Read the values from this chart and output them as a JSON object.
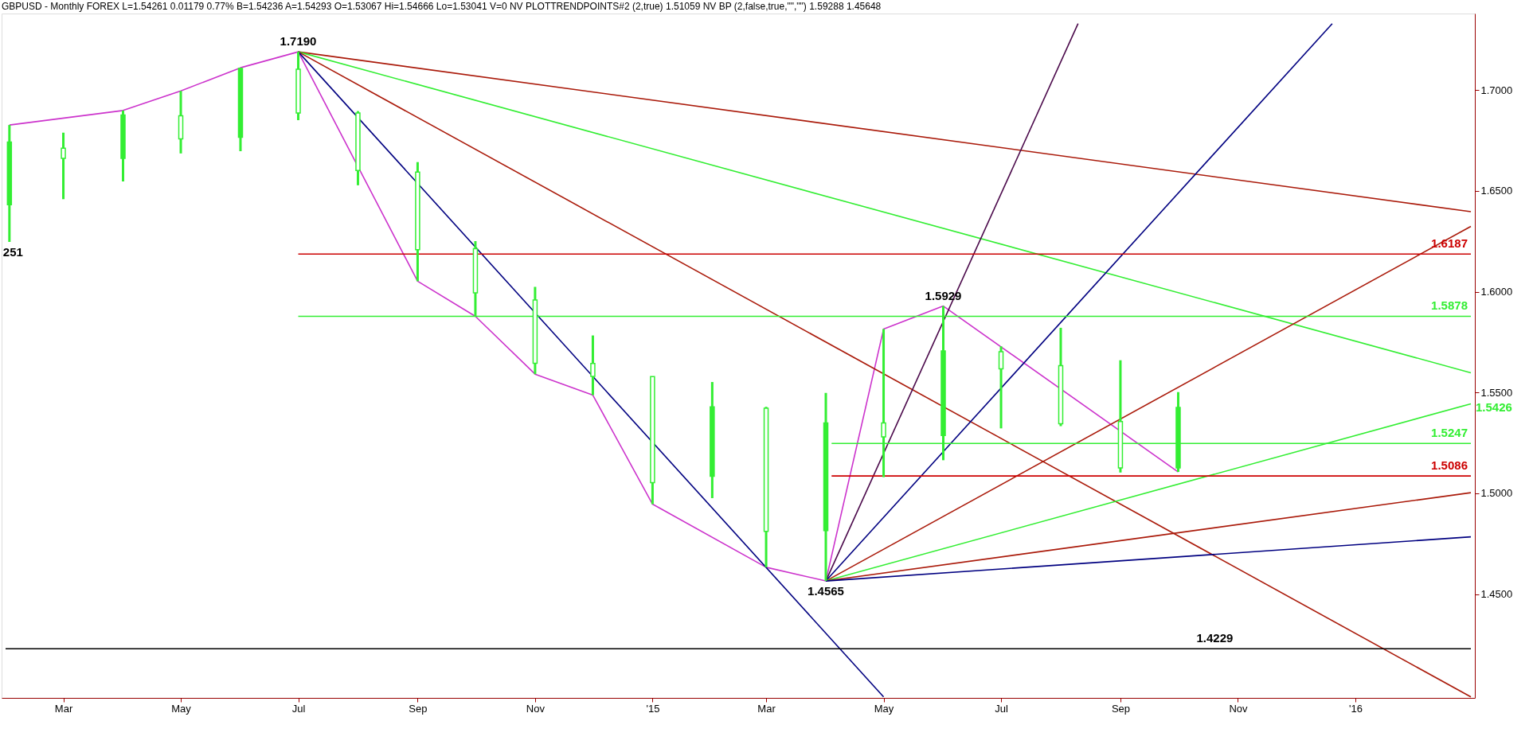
{
  "chart_data": {
    "type": "candlestick",
    "title": "GBPUSD - Monthly  FOREX  L=1.54261  0.01179  0.77%  B=1.54236  A=1.54293  O=1.53067  Hi=1.54666  Lo=1.53041  V=0  NV  PLOTTRENDPOINTS#2 (2,true)  1.51059  NV BP (2,false,true,\"\",\"\")  1.59288  1.45648",
    "color": "#33ee33",
    "x": [
      "2014-02",
      "2014-03",
      "2014-04",
      "2014-05",
      "2014-06",
      "2014-07",
      "2014-08",
      "2014-09",
      "2014-10",
      "2014-11",
      "2014-12",
      "2015-01",
      "2015-02",
      "2015-03",
      "2015-04",
      "2015-05",
      "2015-06",
      "2015-07",
      "2015-08",
      "2015-09",
      "2015-10"
    ],
    "ohlc": [
      [
        1.6432,
        1.6827,
        1.6247,
        1.6742
      ],
      [
        1.6712,
        1.6789,
        1.6459,
        1.6662
      ],
      [
        1.6662,
        1.6899,
        1.6547,
        1.6877
      ],
      [
        1.6873,
        1.6996,
        1.6686,
        1.6758
      ],
      [
        1.6766,
        1.7111,
        1.6697,
        1.7108
      ],
      [
        1.7104,
        1.719,
        1.6851,
        1.6887
      ],
      [
        1.6887,
        1.6896,
        1.6528,
        1.6601
      ],
      [
        1.6593,
        1.6643,
        1.6052,
        1.6209
      ],
      [
        1.6213,
        1.6251,
        1.5878,
        1.5994
      ],
      [
        1.5959,
        1.6024,
        1.5591,
        1.5645
      ],
      [
        1.5644,
        1.5783,
        1.5487,
        1.558
      ],
      [
        1.5579,
        1.5579,
        1.4946,
        1.5053
      ],
      [
        1.5084,
        1.5552,
        1.4976,
        1.5429
      ],
      [
        1.5422,
        1.5429,
        1.4633,
        1.4811
      ],
      [
        1.4815,
        1.5498,
        1.4565,
        1.5349
      ],
      [
        1.5349,
        1.5815,
        1.508,
        1.528
      ],
      [
        1.5287,
        1.5929,
        1.5164,
        1.5706
      ],
      [
        1.5702,
        1.5729,
        1.5322,
        1.5617
      ],
      [
        1.5633,
        1.5821,
        1.5333,
        1.5345
      ],
      [
        1.5356,
        1.566,
        1.5103,
        1.5126
      ],
      [
        1.5126,
        1.5502,
        1.5106,
        1.5426
      ]
    ],
    "series": [
      {
        "type": "line",
        "color": "#cc33cc",
        "x": [
          "2014-02",
          "2014-04",
          "2014-05",
          "2014-06",
          "2014-07",
          "2014-09",
          "2014-10",
          "2014-11",
          "2014-12",
          "2015-01",
          "2015-03",
          "2015-04",
          "2015-05",
          "2015-06",
          "2015-10"
        ],
        "values": [
          1.6827,
          1.6899,
          1.6996,
          1.7111,
          1.719,
          1.6052,
          1.5878,
          1.5591,
          1.5487,
          1.4946,
          1.4633,
          1.4565,
          1.5815,
          1.5929,
          1.5106
        ]
      },
      {
        "type": "line",
        "color": "#aa1a0a",
        "x": [
          "2014-07",
          "2016-03-01"
        ],
        "values": [
          1.719,
          1.6397
        ]
      },
      {
        "type": "line",
        "color": "#33ee33",
        "x": [
          "2014-07",
          "2016-03-01"
        ],
        "values": [
          1.719,
          1.5598
        ]
      },
      {
        "type": "line",
        "color": "#aa1a0a",
        "x": [
          "2014-07",
          "2016-03-01"
        ],
        "values": [
          1.719,
          1.399
        ]
      },
      {
        "type": "line",
        "color": "#000080",
        "x": [
          "2014-07",
          "2015-05"
        ],
        "values": [
          1.719,
          1.399
        ]
      },
      {
        "type": "line",
        "color": "#4b0a4b",
        "x": [
          "2015-04",
          "2015-08-10"
        ],
        "values": [
          1.4565,
          1.733
        ]
      },
      {
        "type": "line",
        "color": "#000080",
        "x": [
          "2015-04",
          "2015-12-20"
        ],
        "values": [
          1.4565,
          1.733
        ]
      },
      {
        "type": "line",
        "color": "#aa1a0a",
        "x": [
          "2015-04",
          "2016-03-01"
        ],
        "values": [
          1.4565,
          1.6324
        ]
      },
      {
        "type": "line",
        "color": "#33ee33",
        "x": [
          "2015-04",
          "2016-03-01"
        ],
        "values": [
          1.4565,
          1.5444
        ]
      },
      {
        "type": "line",
        "color": "#aa1a0a",
        "x": [
          "2015-04",
          "2016-03-01"
        ],
        "values": [
          1.4565,
          1.5003
        ]
      },
      {
        "type": "line",
        "color": "#000080",
        "x": [
          "2015-04",
          "2016-03-01"
        ],
        "values": [
          1.4565,
          1.4784
        ]
      },
      {
        "type": "line",
        "name": "1.6187",
        "color": "#cc0000",
        "x": [
          "2014-07",
          "2016-03-01"
        ],
        "values": [
          1.6187,
          1.6187
        ]
      },
      {
        "type": "line",
        "name": "1.5878",
        "color": "#33ee33",
        "x": [
          "2014-07",
          "2016-03-01"
        ],
        "values": [
          1.5878,
          1.5878
        ]
      },
      {
        "type": "line",
        "name": "1.5247",
        "color": "#33ee33",
        "x": [
          "2015-04-04",
          "2016-03-01"
        ],
        "values": [
          1.5247,
          1.5247
        ]
      },
      {
        "type": "line",
        "name": "1.5086",
        "color": "#cc0000",
        "x": [
          "2015-04-04",
          "2016-03-01"
        ],
        "values": [
          1.5086,
          1.5086
        ]
      },
      {
        "type": "line",
        "color": "#000000",
        "x": [
          "2014-01-30",
          "2016-03-01"
        ],
        "values": [
          1.4229,
          1.4229
        ]
      }
    ],
    "annotations": [
      {
        "text": "1.7190",
        "x": "2014-07",
        "y": 1.719
      },
      {
        "text": "1.5929",
        "x": "2015-06",
        "y": 1.5929
      },
      {
        "text": "1.4565",
        "x": "2015-04",
        "y": 1.4565
      },
      {
        "text": "251",
        "x": "2014-02",
        "y": 1.6247
      },
      {
        "text": "1.4229",
        "x": "2015-10-20",
        "y": 1.4229
      },
      {
        "text": "1.5426",
        "x": "2016-03-01",
        "y": 1.5426
      }
    ],
    "xlim": [
      "2014-01-30",
      "2016-03-01"
    ],
    "ylim": [
      1.3985,
      1.738
    ],
    "xticks": [
      {
        "value": "2014-03",
        "label": "Mar"
      },
      {
        "value": "2014-05",
        "label": "May"
      },
      {
        "value": "2014-07",
        "label": "Jul"
      },
      {
        "value": "2014-09",
        "label": "Sep"
      },
      {
        "value": "2014-11",
        "label": "Nov"
      },
      {
        "value": "2015-01",
        "label": "'15"
      },
      {
        "value": "2015-03",
        "label": "Mar"
      },
      {
        "value": "2015-05",
        "label": "May"
      },
      {
        "value": "2015-07",
        "label": "Jul"
      },
      {
        "value": "2015-09",
        "label": "Sep"
      },
      {
        "value": "2015-11",
        "label": "Nov"
      },
      {
        "value": "2016-01",
        "label": "'16"
      }
    ],
    "yticks": [
      {
        "value": 1.45,
        "label": "1.4500"
      },
      {
        "value": 1.5,
        "label": "1.5000"
      },
      {
        "value": 1.55,
        "label": "1.5500"
      },
      {
        "value": 1.6,
        "label": "1.6000"
      },
      {
        "value": 1.65,
        "label": "1.6500"
      },
      {
        "value": 1.7,
        "label": "1.7000"
      }
    ],
    "grid": false
  }
}
